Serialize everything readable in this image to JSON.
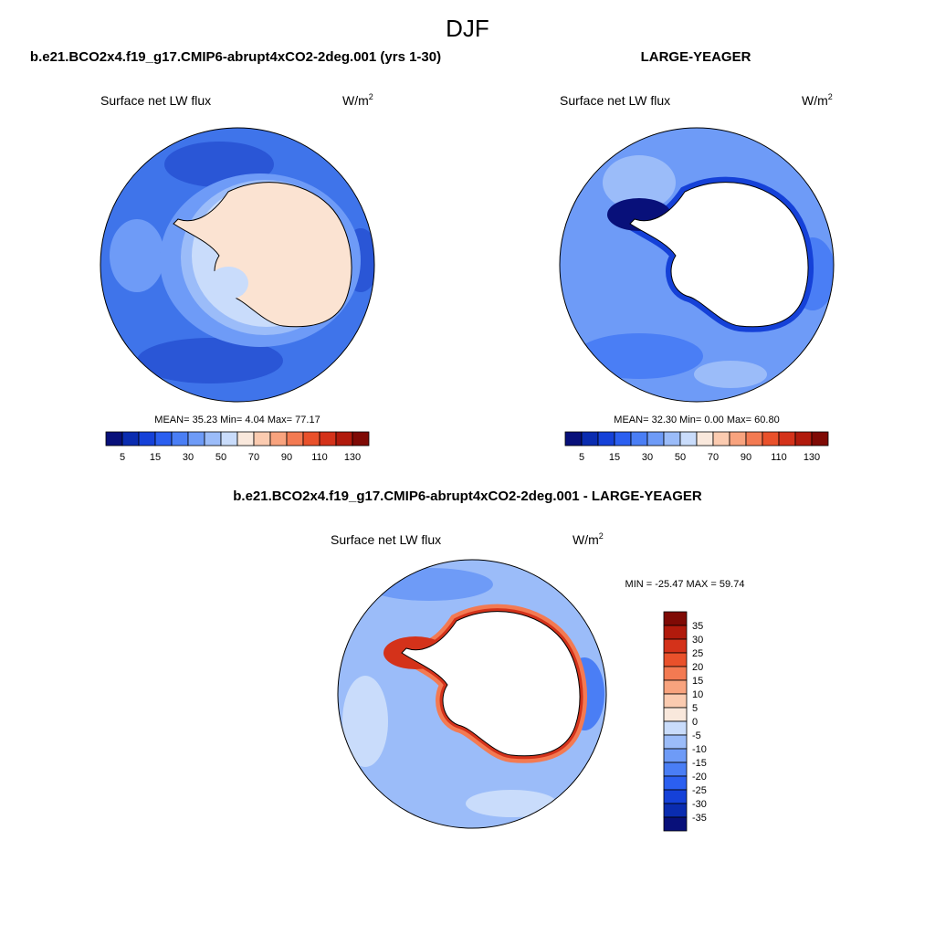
{
  "title": "DJF",
  "panels": [
    {
      "title": "b.e21.BCO2x4.f19_g17.CMIP6-abrupt4xCO2-2deg.001 (yrs 1-30)",
      "variable": "Surface net LW flux",
      "units": "W/m",
      "units_exponent": "2",
      "stats": {
        "mean_label": "MEAN=",
        "mean": "35.23",
        "min_label": "Min=",
        "min": "4.04",
        "max_label": "Max=",
        "max": "77.17"
      },
      "colorbar_labels": [
        5,
        15,
        30,
        50,
        70,
        90,
        110,
        130
      ]
    },
    {
      "title": "LARGE-YEAGER",
      "variable": "Surface net LW flux",
      "units": "W/m",
      "units_exponent": "2",
      "stats": {
        "mean_label": "MEAN=",
        "mean": "32.30",
        "min_label": "Min=",
        "min": "0.00",
        "max_label": "Max=",
        "max": "60.80"
      },
      "colorbar_labels": [
        5,
        15,
        30,
        50,
        70,
        90,
        110,
        130
      ]
    },
    {
      "title": "b.e21.BCO2x4.f19_g17.CMIP6-abrupt4xCO2-2deg.001 - LARGE-YEAGER",
      "variable": "Surface net LW flux",
      "units": "W/m",
      "units_exponent": "2",
      "stats": {
        "min_label": "MIN =",
        "min": "-25.47",
        "max_label": "MAX =",
        "max": "59.74"
      },
      "colorbar_labels": [
        35,
        30,
        25,
        20,
        15,
        10,
        5,
        0,
        -5,
        -10,
        -15,
        -20,
        -25,
        -30,
        -35
      ]
    }
  ],
  "colors": [
    "#08107a",
    "#0a2cb0",
    "#1541d8",
    "#2b5ff0",
    "#4a7ef5",
    "#6e9bf7",
    "#9bbcf9",
    "#c9dcfb",
    "#f9e8dc",
    "#fbcbb0",
    "#f8a37e",
    "#f37a52",
    "#e9512b",
    "#d4321a",
    "#b11a0c",
    "#7f0a05"
  ]
}
